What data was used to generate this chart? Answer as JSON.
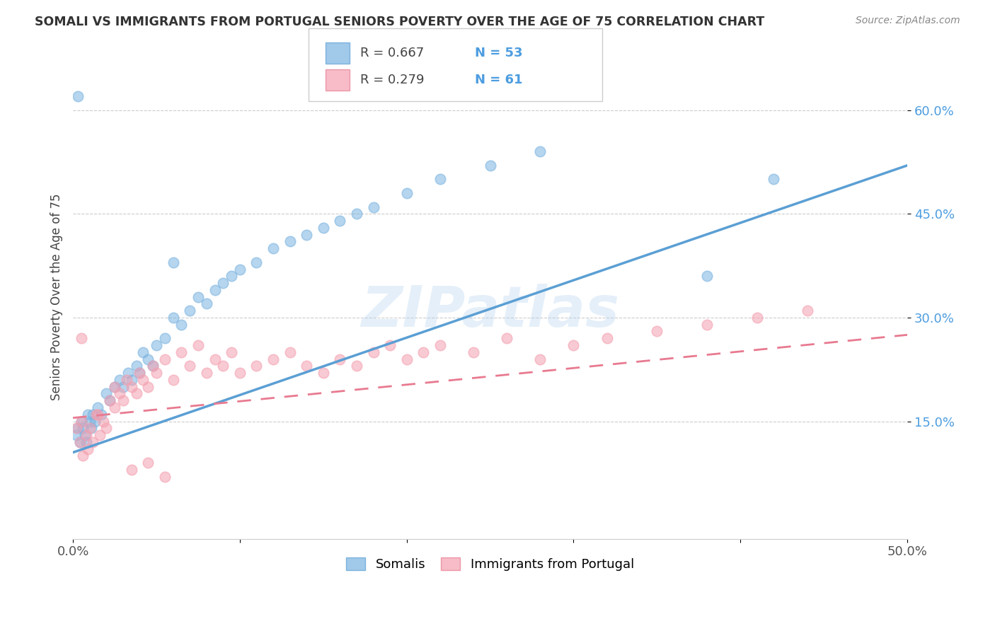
{
  "title": "SOMALI VS IMMIGRANTS FROM PORTUGAL SENIORS POVERTY OVER THE AGE OF 75 CORRELATION CHART",
  "source": "Source: ZipAtlas.com",
  "ylabel": "Seniors Poverty Over the Age of 75",
  "xlim": [
    0.0,
    0.5
  ],
  "ylim": [
    -0.02,
    0.68
  ],
  "yticks": [
    0.15,
    0.3,
    0.45,
    0.6
  ],
  "ytick_labels": [
    "15.0%",
    "30.0%",
    "45.0%",
    "60.0%"
  ],
  "xticks": [
    0.0,
    0.1,
    0.2,
    0.3,
    0.4,
    0.5
  ],
  "xtick_labels": [
    "0.0%",
    "",
    "",
    "",
    "",
    "50.0%"
  ],
  "grid_color": "#cccccc",
  "background_color": "#ffffff",
  "somali_color": "#7ab3e0",
  "portugal_color": "#f4a0b0",
  "somali_line_color": "#5b9fd4",
  "portugal_line_color": "#e87a90",
  "somali_R": 0.667,
  "somali_N": 53,
  "portugal_R": 0.279,
  "portugal_N": 61,
  "legend_label_somali": "Somalis",
  "legend_label_portugal": "Immigrants from Portugal",
  "watermark": "ZIPatlas",
  "somali_scatter_x": [
    0.002,
    0.003,
    0.004,
    0.005,
    0.006,
    0.007,
    0.008,
    0.009,
    0.01,
    0.011,
    0.012,
    0.013,
    0.015,
    0.017,
    0.02,
    0.022,
    0.025,
    0.028,
    0.03,
    0.033,
    0.035,
    0.038,
    0.04,
    0.042,
    0.045,
    0.048,
    0.05,
    0.055,
    0.06,
    0.065,
    0.07,
    0.075,
    0.08,
    0.085,
    0.09,
    0.095,
    0.1,
    0.11,
    0.12,
    0.13,
    0.14,
    0.15,
    0.16,
    0.17,
    0.18,
    0.2,
    0.22,
    0.25,
    0.28,
    0.003,
    0.38,
    0.42,
    0.06
  ],
  "somali_scatter_y": [
    0.13,
    0.14,
    0.12,
    0.15,
    0.14,
    0.13,
    0.12,
    0.16,
    0.15,
    0.14,
    0.16,
    0.15,
    0.17,
    0.16,
    0.19,
    0.18,
    0.2,
    0.21,
    0.2,
    0.22,
    0.21,
    0.23,
    0.22,
    0.25,
    0.24,
    0.23,
    0.26,
    0.27,
    0.3,
    0.29,
    0.31,
    0.33,
    0.32,
    0.34,
    0.35,
    0.36,
    0.37,
    0.38,
    0.4,
    0.41,
    0.42,
    0.43,
    0.44,
    0.45,
    0.46,
    0.48,
    0.5,
    0.52,
    0.54,
    0.62,
    0.36,
    0.5,
    0.38
  ],
  "portugal_scatter_x": [
    0.002,
    0.004,
    0.005,
    0.006,
    0.008,
    0.009,
    0.01,
    0.012,
    0.014,
    0.016,
    0.018,
    0.02,
    0.022,
    0.025,
    0.028,
    0.03,
    0.032,
    0.035,
    0.038,
    0.04,
    0.042,
    0.045,
    0.048,
    0.05,
    0.055,
    0.06,
    0.065,
    0.07,
    0.075,
    0.08,
    0.085,
    0.09,
    0.095,
    0.1,
    0.11,
    0.12,
    0.13,
    0.14,
    0.15,
    0.16,
    0.17,
    0.18,
    0.19,
    0.2,
    0.21,
    0.22,
    0.24,
    0.26,
    0.28,
    0.3,
    0.32,
    0.35,
    0.38,
    0.41,
    0.44,
    0.005,
    0.015,
    0.025,
    0.035,
    0.045,
    0.055
  ],
  "portugal_scatter_y": [
    0.14,
    0.12,
    0.15,
    0.1,
    0.13,
    0.11,
    0.14,
    0.12,
    0.16,
    0.13,
    0.15,
    0.14,
    0.18,
    0.17,
    0.19,
    0.18,
    0.21,
    0.2,
    0.19,
    0.22,
    0.21,
    0.2,
    0.23,
    0.22,
    0.24,
    0.21,
    0.25,
    0.23,
    0.26,
    0.22,
    0.24,
    0.23,
    0.25,
    0.22,
    0.23,
    0.24,
    0.25,
    0.23,
    0.22,
    0.24,
    0.23,
    0.25,
    0.26,
    0.24,
    0.25,
    0.26,
    0.25,
    0.27,
    0.24,
    0.26,
    0.27,
    0.28,
    0.29,
    0.3,
    0.31,
    0.27,
    0.16,
    0.2,
    0.08,
    0.09,
    0.07
  ],
  "somali_line_x": [
    0.0,
    0.5
  ],
  "somali_line_y": [
    0.105,
    0.52
  ],
  "portugal_line_x": [
    0.0,
    0.5
  ],
  "portugal_line_y": [
    0.155,
    0.275
  ]
}
